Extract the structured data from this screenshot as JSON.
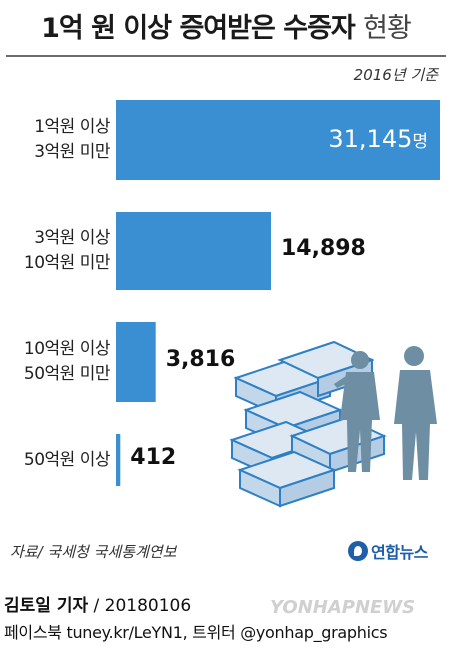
{
  "header": {
    "title_main": "1억 원 이상  증여받은 수증자",
    "title_suffix": "현황",
    "basis": "2016년 기준"
  },
  "chart_data": {
    "type": "bar",
    "orientation": "horizontal",
    "title": "1억 원 이상 증여받은 수증자 현황",
    "note": "2016년 기준",
    "unit": "명",
    "categories": [
      [
        "1억원 이상",
        "3억원 미만"
      ],
      [
        "3억원 이상",
        "10억원 미만"
      ],
      [
        "10억원 이상",
        "50억원 미만"
      ],
      [
        "50억원 이상"
      ]
    ],
    "values": [
      31145,
      14898,
      3816,
      412
    ],
    "value_labels": [
      "31,145",
      "14,898",
      "3,816",
      "412"
    ],
    "first_label_unit": "명",
    "xlim": [
      0,
      31145
    ],
    "bar_color": "#3a8fd3",
    "grid": false,
    "legend": "none"
  },
  "footer": {
    "source": "자료/ 국세청 국세통계연보",
    "logo_text": "연합뉴스",
    "byline_name": "김토일 기자",
    "byline_date": " / 20180106",
    "social": "페이스북 tuney.kr/LeYN1, 트위터 @yonhap_graphics",
    "watermark": "YONHAPNEWS"
  },
  "colors": {
    "bar": "#3a8fd3",
    "illustration": "#6d8ea3",
    "money_outline": "#2e7fc4",
    "logo": "#1f5fa8"
  }
}
